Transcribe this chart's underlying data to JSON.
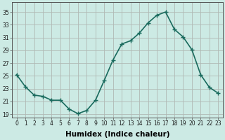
{
  "x": [
    0,
    1,
    2,
    3,
    4,
    5,
    6,
    7,
    8,
    9,
    10,
    11,
    12,
    13,
    14,
    15,
    16,
    17,
    18,
    19,
    20,
    21,
    22,
    23
  ],
  "y": [
    25.2,
    23.3,
    22.0,
    21.8,
    21.2,
    21.2,
    19.8,
    19.1,
    19.6,
    21.2,
    24.3,
    27.5,
    30.0,
    30.5,
    31.7,
    33.3,
    34.5,
    35.0,
    32.3,
    31.1,
    29.1,
    25.2,
    23.2,
    22.3
  ],
  "line_color": "#1a6b5e",
  "marker": "+",
  "marker_size": 4,
  "bg_color": "#cceae4",
  "grid_color": "#b0b8b4",
  "xlabel": "Humidex (Indice chaleur)",
  "ylim": [
    18.5,
    36.5
  ],
  "xlim": [
    -0.5,
    23.5
  ],
  "yticks": [
    19,
    21,
    23,
    25,
    27,
    29,
    31,
    33,
    35
  ],
  "xticks": [
    0,
    1,
    2,
    3,
    4,
    5,
    6,
    7,
    8,
    9,
    10,
    11,
    12,
    13,
    14,
    15,
    16,
    17,
    18,
    19,
    20,
    21,
    22,
    23
  ],
  "tick_label_fontsize": 5.5,
  "xlabel_fontsize": 7.5,
  "line_width": 1.2
}
